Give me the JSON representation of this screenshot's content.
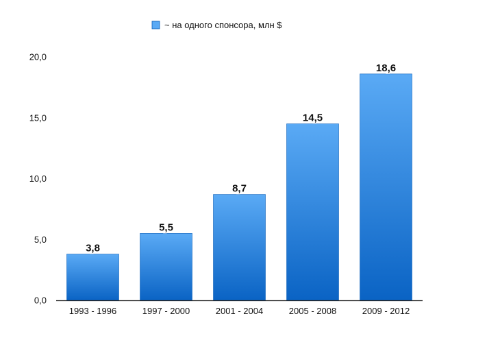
{
  "chart_data": {
    "type": "bar",
    "categories": [
      "1993 - 1996",
      "1997 - 2000",
      "2001 - 2004",
      "2005 - 2008",
      "2009 - 2012"
    ],
    "series": [
      {
        "name": "~ на одного спонсора, млн $",
        "values": [
          3.8,
          5.5,
          8.7,
          14.5,
          18.6
        ],
        "value_labels": [
          "3,8",
          "5,5",
          "8,7",
          "14,5",
          "18,6"
        ]
      }
    ],
    "title": "",
    "xlabel": "",
    "ylabel": "",
    "ylim": [
      0,
      20
    ],
    "yticks": [
      0,
      5,
      10,
      15,
      20
    ],
    "ytick_labels": [
      "0,0",
      "5,0",
      "10,0",
      "15,0",
      "20,0"
    ],
    "grid": false,
    "legend_position": "top-center",
    "colors": {
      "bar_top": "#5aaaf5",
      "bar_bottom": "#0a63c4",
      "bar_stroke": "#0d5fb8",
      "axis": "#222222"
    }
  }
}
